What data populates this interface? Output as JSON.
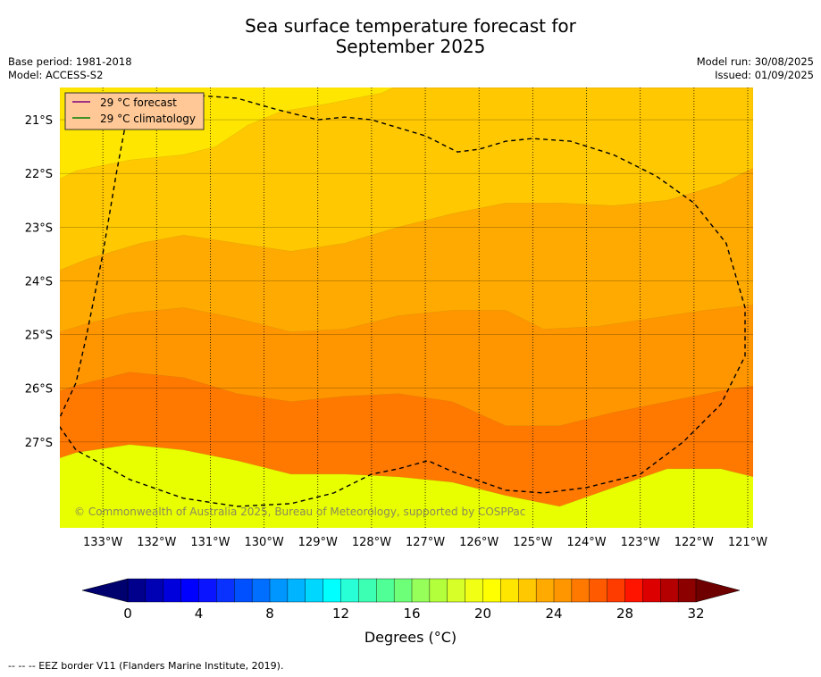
{
  "title_line1": "Sea surface temperature forecast for",
  "title_line2": "September 2025",
  "meta": {
    "base_period": "Base period: 1981-2018",
    "model": "Model: ACCESS-S2",
    "model_run": "Model run: 30/08/2025",
    "issued": "Issued: 01/09/2025"
  },
  "footer_note": "--  --  -- EEZ border V11 (Flanders Marine Institute, 2019).",
  "colors": {
    "forecast_line": "#800080",
    "climatology_line": "#008000",
    "legend_bg": "#ffc896"
  },
  "chart_data": {
    "type": "heatmap",
    "title": "Sea surface temperature forecast for September 2025",
    "xlabel": "",
    "ylabel": "",
    "xlim": [
      -133.8,
      -120.9
    ],
    "ylim": [
      -28.6,
      -20.4
    ],
    "grid": true,
    "legend_position": "top-left",
    "x_ticks": [
      "133°W",
      "132°W",
      "131°W",
      "130°W",
      "129°W",
      "128°W",
      "127°W",
      "126°W",
      "125°W",
      "124°W",
      "123°W",
      "122°W",
      "121°W"
    ],
    "y_ticks": [
      "21°S",
      "22°S",
      "23°S",
      "24°S",
      "25°S",
      "26°S",
      "27°S"
    ],
    "legend": [
      {
        "label": "29 °C  forecast",
        "color": "#800080"
      },
      {
        "label": "29 °C  climatology",
        "color": "#008000"
      }
    ],
    "watermark": "© Commonwealth of Australia 2025, Bureau of Meteorology, supported by COSPPac",
    "colorbar": {
      "label": "Degrees (°C)",
      "min": 0,
      "max": 32,
      "step": 1,
      "tick_values": [
        0,
        4,
        8,
        12,
        16,
        20,
        24,
        28,
        32
      ],
      "tick_labels": [
        "0",
        "4",
        "8",
        "12",
        "16",
        "20",
        "24",
        "28",
        "32"
      ],
      "colors": [
        "#00008c",
        "#0000b4",
        "#0000dc",
        "#0000ff",
        "#0a14ff",
        "#0a32ff",
        "#0050ff",
        "#006eff",
        "#0096ff",
        "#00b4ff",
        "#00d7ff",
        "#00ffff",
        "#28ffd7",
        "#3cffb4",
        "#50ff96",
        "#6eff78",
        "#96ff5a",
        "#b4ff3c",
        "#d7ff28",
        "#f0ff14",
        "#ffff00",
        "#ffe600",
        "#ffc800",
        "#ffaa00",
        "#ff9600",
        "#ff7800",
        "#ff5a00",
        "#ff3c00",
        "#ff1400",
        "#dc0000",
        "#b40000",
        "#8c0000"
      ],
      "under_color": "#00006e",
      "over_color": "#6e0000"
    },
    "temperature_bands": [
      {
        "range": "21-22 °C",
        "color": "#e8ff00"
      },
      {
        "range": "22-23 °C",
        "color": "#ffe600"
      },
      {
        "range": "23-24 °C",
        "color": "#ffc800"
      },
      {
        "range": "24-25 °C",
        "color": "#ffaa00"
      },
      {
        "range": "25-26 °C",
        "color": "#ff9600"
      },
      {
        "range": "26-27 °C",
        "color": "#ff7800"
      }
    ],
    "band_boundaries": [
      {
        "level": 26,
        "points": [
          [
            -133.8,
            -22.1
          ],
          [
            -133.5,
            -21.95
          ],
          [
            -132.5,
            -21.75
          ],
          [
            -131.5,
            -21.65
          ],
          [
            -130.9,
            -21.5
          ],
          [
            -130.3,
            -21.1
          ],
          [
            -129.7,
            -20.85
          ],
          [
            -128.8,
            -20.7
          ],
          [
            -127.8,
            -20.5
          ],
          [
            -127.6,
            -20.4
          ]
        ]
      },
      {
        "level": 25,
        "points": [
          [
            -133.8,
            -23.8
          ],
          [
            -133.3,
            -23.6
          ],
          [
            -132.3,
            -23.3
          ],
          [
            -131.5,
            -23.15
          ],
          [
            -130.5,
            -23.3
          ],
          [
            -129.5,
            -23.45
          ],
          [
            -128.5,
            -23.3
          ],
          [
            -127.5,
            -23.0
          ],
          [
            -126.5,
            -22.75
          ],
          [
            -125.5,
            -22.55
          ],
          [
            -124.5,
            -22.55
          ],
          [
            -123.5,
            -22.6
          ],
          [
            -122.5,
            -22.5
          ],
          [
            -121.5,
            -22.2
          ],
          [
            -120.9,
            -21.9
          ]
        ]
      },
      {
        "level": 24,
        "points": [
          [
            -133.8,
            -24.95
          ],
          [
            -133.3,
            -24.8
          ],
          [
            -132.5,
            -24.6
          ],
          [
            -131.5,
            -24.5
          ],
          [
            -130.5,
            -24.7
          ],
          [
            -129.5,
            -24.95
          ],
          [
            -128.5,
            -24.9
          ],
          [
            -127.5,
            -24.65
          ],
          [
            -126.5,
            -24.55
          ],
          [
            -125.5,
            -24.55
          ],
          [
            -124.8,
            -24.9
          ],
          [
            -123.8,
            -24.85
          ],
          [
            -122.8,
            -24.7
          ],
          [
            -121.8,
            -24.55
          ],
          [
            -120.9,
            -24.45
          ]
        ]
      },
      {
        "level": 23,
        "points": [
          [
            -133.8,
            -26.05
          ],
          [
            -133.5,
            -25.95
          ],
          [
            -132.5,
            -25.7
          ],
          [
            -131.5,
            -25.8
          ],
          [
            -130.5,
            -26.1
          ],
          [
            -129.5,
            -26.25
          ],
          [
            -128.5,
            -26.15
          ],
          [
            -127.5,
            -26.1
          ],
          [
            -126.5,
            -26.25
          ],
          [
            -125.5,
            -26.7
          ],
          [
            -124.5,
            -26.7
          ],
          [
            -123.5,
            -26.45
          ],
          [
            -122.5,
            -26.25
          ],
          [
            -121.5,
            -26.05
          ],
          [
            -120.9,
            -25.95
          ]
        ]
      },
      {
        "level": 22,
        "points": [
          [
            -133.8,
            -27.3
          ],
          [
            -133.5,
            -27.2
          ],
          [
            -132.5,
            -27.05
          ],
          [
            -131.5,
            -27.15
          ],
          [
            -130.5,
            -27.35
          ],
          [
            -129.5,
            -27.6
          ],
          [
            -128.5,
            -27.6
          ],
          [
            -127.5,
            -27.65
          ],
          [
            -126.5,
            -27.75
          ],
          [
            -125.5,
            -28.0
          ],
          [
            -124.5,
            -28.2
          ],
          [
            -123.5,
            -27.85
          ],
          [
            -122.5,
            -27.5
          ],
          [
            -121.5,
            -27.5
          ],
          [
            -120.9,
            -27.65
          ]
        ]
      }
    ],
    "eez_border": [
      [
        -132.6,
        -21.2
      ],
      [
        -132.75,
        -22.0
      ],
      [
        -133.0,
        -23.5
      ],
      [
        -133.3,
        -25.0
      ],
      [
        -133.5,
        -25.9
      ],
      [
        -133.85,
        -26.65
      ],
      [
        -133.5,
        -27.15
      ],
      [
        -132.5,
        -27.7
      ],
      [
        -131.5,
        -28.05
      ],
      [
        -130.5,
        -28.2
      ],
      [
        -129.5,
        -28.15
      ],
      [
        -128.7,
        -27.95
      ],
      [
        -128.0,
        -27.6
      ],
      [
        -127.5,
        -27.5
      ],
      [
        -126.95,
        -27.35
      ],
      [
        -126.5,
        -27.55
      ],
      [
        -125.5,
        -27.9
      ],
      [
        -124.8,
        -27.95
      ],
      [
        -124.0,
        -27.85
      ],
      [
        -123.0,
        -27.6
      ],
      [
        -122.2,
        -27.0
      ],
      [
        -121.5,
        -26.3
      ],
      [
        -121.05,
        -25.4
      ],
      [
        -121.05,
        -24.5
      ],
      [
        -121.4,
        -23.3
      ],
      [
        -122.0,
        -22.55
      ],
      [
        -122.7,
        -22.05
      ],
      [
        -123.5,
        -21.65
      ],
      [
        -124.3,
        -21.4
      ],
      [
        -125.0,
        -21.35
      ],
      [
        -125.5,
        -21.4
      ],
      [
        -126.0,
        -21.55
      ],
      [
        -126.4,
        -21.6
      ],
      [
        -127.0,
        -21.3
      ],
      [
        -127.5,
        -21.15
      ],
      [
        -128.0,
        -21.0
      ],
      [
        -128.5,
        -20.95
      ],
      [
        -129.0,
        -21.0
      ],
      [
        -129.8,
        -20.8
      ],
      [
        -130.5,
        -20.6
      ],
      [
        -131.2,
        -20.55
      ],
      [
        -131.8,
        -20.6
      ],
      [
        -132.3,
        -20.65
      ],
      [
        -132.45,
        -20.7
      ],
      [
        -132.6,
        -21.2
      ]
    ]
  }
}
